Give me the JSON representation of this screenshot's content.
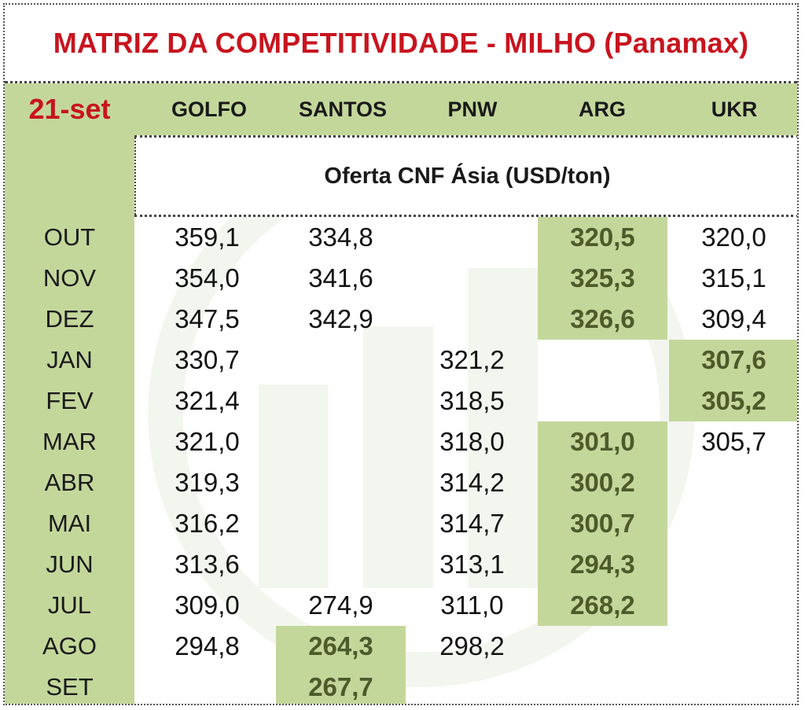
{
  "title": "MATRIZ DA COMPETITIVIDADE - MILHO (Panamax)",
  "date": "21-set",
  "subtitle": "Oferta CNF Ásia (USD/ton)",
  "columns": [
    "GOLFO",
    "SANTOS",
    "PNW",
    "ARG",
    "UKR"
  ],
  "colors": {
    "title_red": "#c8141e",
    "highlight_green": "#c4d79b",
    "best_text": "#4d5a2a"
  },
  "rows": [
    {
      "month": "OUT",
      "values": [
        "359,1",
        "334,8",
        "",
        "320,5",
        "320,0"
      ],
      "best": 3
    },
    {
      "month": "NOV",
      "values": [
        "354,0",
        "341,6",
        "",
        "325,3",
        "315,1"
      ],
      "best": 3
    },
    {
      "month": "DEZ",
      "values": [
        "347,5",
        "342,9",
        "",
        "326,6",
        "309,4"
      ],
      "best": 3
    },
    {
      "month": "JAN",
      "values": [
        "330,7",
        "",
        "321,2",
        "",
        "307,6"
      ],
      "best": 4
    },
    {
      "month": "FEV",
      "values": [
        "321,4",
        "",
        "318,5",
        "",
        "305,2"
      ],
      "best": 4
    },
    {
      "month": "MAR",
      "values": [
        "321,0",
        "",
        "318,0",
        "301,0",
        "305,7"
      ],
      "best": 3
    },
    {
      "month": "ABR",
      "values": [
        "319,3",
        "",
        "314,2",
        "300,2",
        ""
      ],
      "best": 3
    },
    {
      "month": "MAI",
      "values": [
        "316,2",
        "",
        "314,7",
        "300,7",
        ""
      ],
      "best": 3
    },
    {
      "month": "JUN",
      "values": [
        "313,6",
        "",
        "313,1",
        "294,3",
        ""
      ],
      "best": 3
    },
    {
      "month": "JUL",
      "values": [
        "309,0",
        "274,9",
        "311,0",
        "268,2",
        ""
      ],
      "best": 3
    },
    {
      "month": "AGO",
      "values": [
        "294,8",
        "264,3",
        "298,2",
        "",
        ""
      ],
      "best": 1
    },
    {
      "month": "SET",
      "values": [
        "",
        "267,7",
        "",
        "",
        ""
      ],
      "best": 1
    }
  ]
}
